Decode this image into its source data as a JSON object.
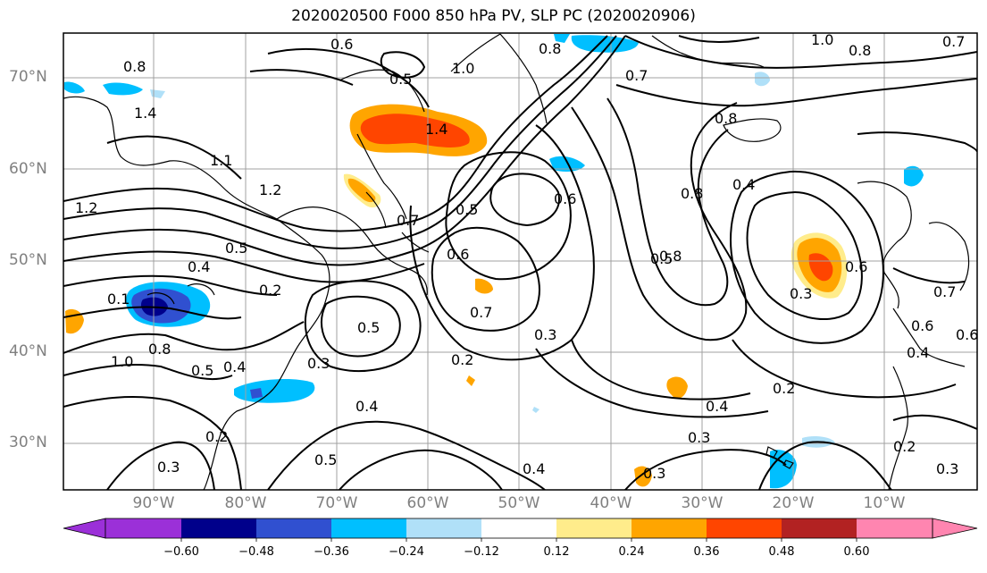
{
  "title": "2020020500 F000 850 hPa PV, SLP PC (2020020906)",
  "lat_labels": [
    "70°N",
    "60°N",
    "50°N",
    "40°N",
    "30°N"
  ],
  "lon_labels": [
    "90°W",
    "80°W",
    "70°W",
    "60°W",
    "50°W",
    "40°W",
    "30°W",
    "20°W",
    "10°W"
  ],
  "contour_labels": [
    "0.8",
    "0.6",
    "0.5",
    "1.0",
    "0.8",
    "0.7",
    "1.0",
    "0.8",
    "0.7",
    "1.4",
    "1.2",
    "1.1",
    "1.2",
    "1.4",
    "0.8",
    "0.8",
    "0.7",
    "0.5",
    "0.6",
    "0.4",
    "0.5",
    "0.2",
    "0.7",
    "0.6",
    "0.8",
    "0.4",
    "0.3",
    "0.6",
    "0.7",
    "0.6",
    "0.5",
    "0.3",
    "0.2",
    "0.4",
    "0.2",
    "0.1",
    "1.0",
    "0.8",
    "0.5",
    "0.4",
    "0.3",
    "0.5",
    "0.3",
    "0.2",
    "0.4",
    "0.6",
    "0.3",
    "0.4",
    "0.5",
    "0.3",
    "0.2",
    "0.3",
    "0.4"
  ],
  "colorbar": {
    "ticks": [
      "−0.60",
      "−0.48",
      "−0.36",
      "−0.24",
      "−0.12",
      "0.12",
      "0.24",
      "0.36",
      "0.48",
      "0.60"
    ],
    "colors": [
      "#9b30d8",
      "#00008b",
      "#3050d0",
      "#00bfff",
      "#b0e0f8",
      "#ffffff",
      "#ffec8b",
      "#ffa500",
      "#ff4500",
      "#b22222",
      "#ff85b0"
    ]
  },
  "shading_colors": {
    "strong_positive": "#ff4500",
    "positive": "#ffa500",
    "weak_positive": "#ffec8b",
    "negative": "#00bfff",
    "strong_negative": "#3050d0",
    "very_negative": "#00008b"
  }
}
